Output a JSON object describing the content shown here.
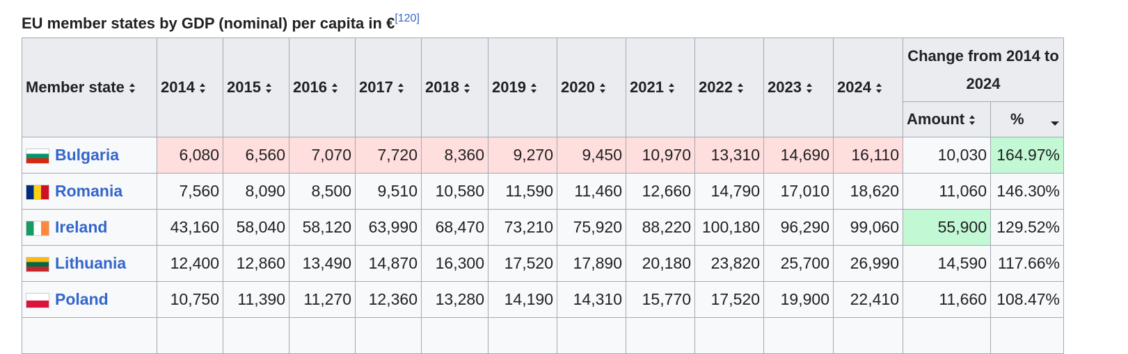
{
  "caption": {
    "title": "EU member states by GDP (nominal) per capita in €",
    "ref": "[120]"
  },
  "table": {
    "header": {
      "member": "Member state",
      "years": [
        "2014",
        "2015",
        "2016",
        "2017",
        "2018",
        "2019",
        "2020",
        "2021",
        "2022",
        "2023",
        "2024"
      ],
      "change": "Change from 2014 to 2024",
      "amount": "Amount",
      "percent": "%"
    },
    "rows": [
      {
        "state": "Bulgaria",
        "values": [
          "6,080",
          "6,560",
          "7,070",
          "7,720",
          "8,360",
          "9,270",
          "9,450",
          "10,970",
          "13,310",
          "14,690",
          "16,110"
        ],
        "amount": "10,030",
        "percent": "164.97%"
      },
      {
        "state": "Romania",
        "values": [
          "7,560",
          "8,090",
          "8,500",
          "9,510",
          "10,580",
          "11,590",
          "11,460",
          "12,660",
          "14,790",
          "17,010",
          "18,620"
        ],
        "amount": "11,060",
        "percent": "146.30%"
      },
      {
        "state": "Ireland",
        "values": [
          "43,160",
          "58,040",
          "58,120",
          "63,990",
          "68,470",
          "73,210",
          "75,920",
          "88,220",
          "100,180",
          "96,290",
          "99,060"
        ],
        "amount": "55,900",
        "percent": "129.52%"
      },
      {
        "state": "Lithuania",
        "values": [
          "12,400",
          "12,860",
          "13,490",
          "14,870",
          "16,300",
          "17,520",
          "17,890",
          "20,180",
          "23,820",
          "25,700",
          "26,990"
        ],
        "amount": "14,590",
        "percent": "117.66%"
      },
      {
        "state": "Poland",
        "values": [
          "10,750",
          "11,390",
          "11,270",
          "12,360",
          "13,280",
          "14,190",
          "14,310",
          "15,770",
          "17,520",
          "19,900",
          "22,410"
        ],
        "amount": "11,660",
        "percent": "108.47%"
      }
    ]
  }
}
